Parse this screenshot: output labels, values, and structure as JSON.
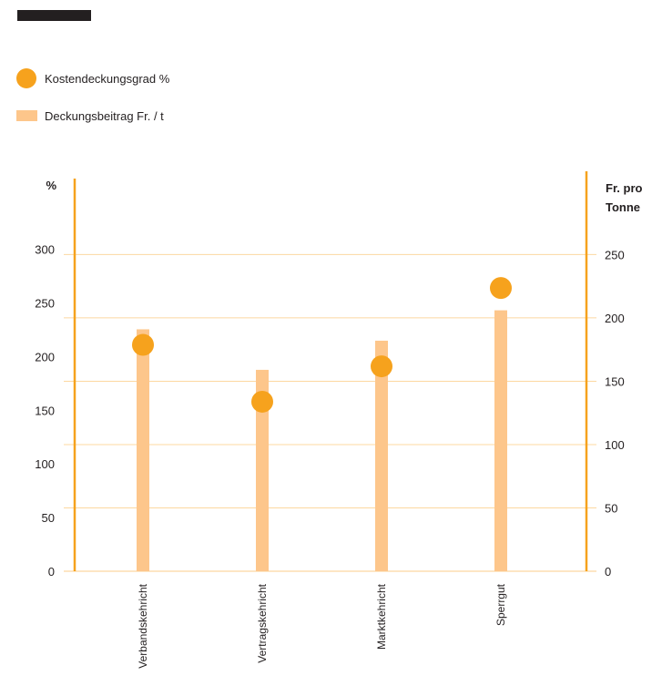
{
  "legend": {
    "dot_label": "Kostendeckungsgrad %",
    "bar_label": "Deckungsbeitrag Fr. / t"
  },
  "colors": {
    "dot": "#f6a21d",
    "bar": "#fdc68b",
    "axis": "#f6a21d",
    "grid": "#fcd8a0",
    "topbar": "#231f20"
  },
  "chart_data": {
    "type": "bar+scatter",
    "categories": [
      "Verbandskehricht",
      "Vertragskehricht",
      "Marktkehricht",
      "Sperrgut"
    ],
    "series": [
      {
        "name": "Kostendeckungsgrad %",
        "kind": "scatter",
        "axis": "left",
        "values": [
          211,
          158,
          191,
          264
        ]
      },
      {
        "name": "Deckungsbeitrag Fr. / t",
        "kind": "bar",
        "axis": "right",
        "values": [
          191,
          159,
          182,
          206
        ]
      }
    ],
    "left_axis": {
      "label": "%",
      "ylim": [
        0,
        366
      ],
      "ticks": [
        0,
        50,
        100,
        150,
        200,
        250,
        300
      ]
    },
    "right_axis": {
      "label_lines": [
        "Fr. pro",
        "Tonne"
      ],
      "ylim": [
        0,
        310
      ],
      "ticks": [
        0,
        50,
        100,
        150,
        200,
        250
      ]
    },
    "grid": true,
    "legend_position": "top-left"
  }
}
